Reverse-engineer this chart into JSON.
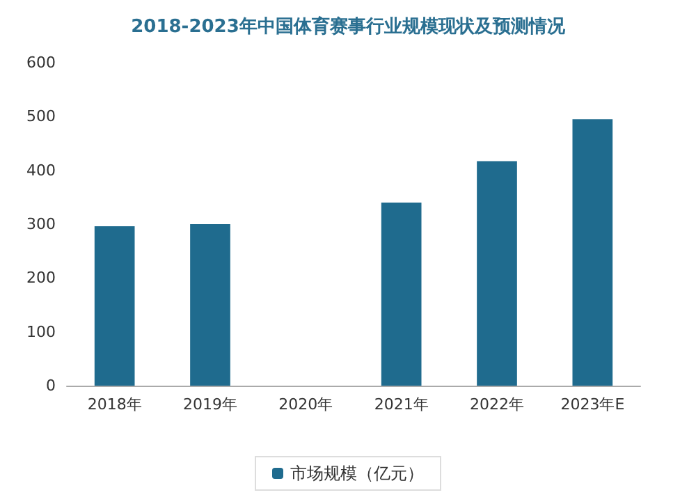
{
  "chart_data": {
    "type": "bar",
    "title": "2018-2023年中国体育赛事行业规模现状及预测情况",
    "categories": [
      "2018年",
      "2019年",
      "2020年",
      "2021年",
      "2022年",
      "2023年E"
    ],
    "series": [
      {
        "name": "市场规模（亿元）",
        "color": "#1f6b8e",
        "values": [
          296,
          300,
          null,
          340,
          417,
          495
        ]
      }
    ],
    "ylim": [
      0,
      600
    ],
    "yticks": [
      0,
      100,
      200,
      300,
      400,
      500,
      600
    ],
    "grid": false,
    "legend": "bottom"
  }
}
